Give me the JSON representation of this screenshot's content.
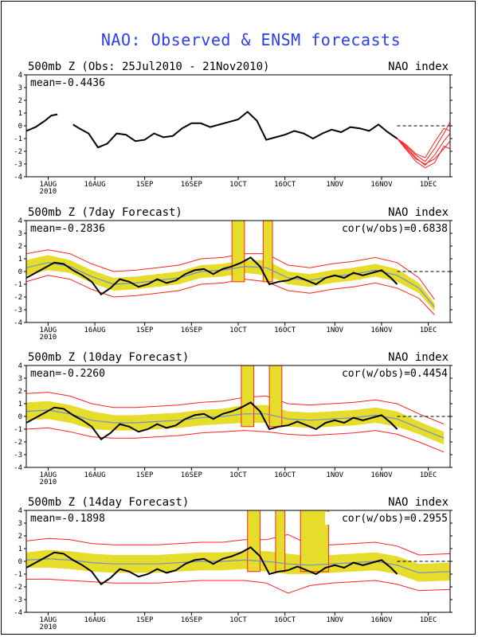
{
  "page": {
    "title": "NAO: Observed & ENSM forecasts"
  },
  "colors": {
    "title": "#2b3ef0",
    "observed": "#000000",
    "ensemble": "#ff2020",
    "spread": "#e6dc2a",
    "ens_mean": "#6f8fd0"
  },
  "x_ticks": [
    "1AUG",
    "16AUG",
    "1SEP",
    "16SEP",
    "1OCT",
    "16OCT",
    "1NOV",
    "16NOV",
    "1DEC"
  ],
  "x_year": "2010",
  "chart_data": [
    {
      "type": "line",
      "title_left": "500mb Z (Obs: 25Jul2010 - 21Nov2010)",
      "title_right": "NAO index",
      "mean_label": "mean=-0.4436",
      "cor_label": "",
      "ylim": [
        -4,
        4
      ],
      "y_ticks": [
        "4",
        "3",
        "2",
        "1",
        "0",
        "-1",
        "-2",
        "-3",
        "-4"
      ],
      "x_range": [
        "2010-07-25",
        "2010-12-08"
      ],
      "observed": {
        "x": [
          "2010-07-25",
          "2010-07-28",
          "2010-07-31",
          "2010-08-02",
          "2010-08-04",
          "2010-08-06",
          "2010-08-09",
          "2010-08-11",
          "2010-08-14",
          "2010-08-17",
          "2010-08-20",
          "2010-08-23",
          "2010-08-26",
          "2010-08-29",
          "2010-09-01",
          "2010-09-04",
          "2010-09-07",
          "2010-09-10",
          "2010-09-13",
          "2010-09-16",
          "2010-09-19",
          "2010-09-22",
          "2010-09-25",
          "2010-09-28",
          "2010-10-01",
          "2010-10-04",
          "2010-10-07",
          "2010-10-10",
          "2010-10-13",
          "2010-10-16",
          "2010-10-19",
          "2010-10-22",
          "2010-10-25",
          "2010-10-28",
          "2010-10-31",
          "2010-11-03",
          "2010-11-06",
          "2010-11-09",
          "2010-11-12",
          "2010-11-15",
          "2010-11-18",
          "2010-11-21"
        ],
        "y": [
          -0.4,
          -0.1,
          0.4,
          0.8,
          0.9,
          null,
          0.1,
          -0.2,
          -0.6,
          -1.7,
          -1.4,
          -0.6,
          -0.7,
          -1.2,
          -1.1,
          -0.6,
          -0.9,
          -0.8,
          -0.2,
          0.2,
          0.2,
          -0.1,
          0.1,
          0.3,
          0.5,
          1.1,
          0.4,
          -1.1,
          -0.9,
          -0.7,
          -0.4,
          -0.6,
          -1.0,
          -0.6,
          -0.3,
          -0.5,
          -0.1,
          -0.2,
          -0.4,
          0.1,
          -0.5,
          -1.0
        ]
      },
      "ensemble_forecast": {
        "x": [
          "2010-11-21",
          "2010-11-24",
          "2010-11-27",
          "2010-11-30",
          "2010-12-03",
          "2010-12-06",
          "2010-12-08"
        ],
        "members": [
          [
            -1.0,
            -1.6,
            -2.3,
            -2.8,
            -1.8,
            -0.6,
            0.3
          ],
          [
            -1.0,
            -1.7,
            -2.5,
            -3.1,
            -2.3,
            -1.2,
            -0.6
          ],
          [
            -1.0,
            -1.8,
            -2.6,
            -3.0,
            -2.6,
            -1.8,
            -1.2
          ],
          [
            -1.0,
            -1.5,
            -2.2,
            -2.5,
            -1.3,
            -0.2,
            -0.4
          ],
          [
            -1.0,
            -1.9,
            -2.8,
            -3.3,
            -2.9,
            -1.6,
            -1.8
          ]
        ]
      }
    },
    {
      "type": "line",
      "title_left": "500mb Z (7day Forecast)",
      "title_right": "NAO index",
      "mean_label": "mean=-0.2836",
      "cor_label": "cor(w/obs)=0.6838",
      "ylim": [
        -4,
        4
      ],
      "y_ticks": [
        "4",
        "3",
        "2",
        "1",
        "0",
        "-1",
        "-2",
        "-3",
        "-4"
      ],
      "x_range": [
        "2010-07-25",
        "2010-12-08"
      ],
      "observed": {
        "x": [
          "2010-07-25",
          "2010-07-28",
          "2010-07-31",
          "2010-08-03",
          "2010-08-06",
          "2010-08-09",
          "2010-08-12",
          "2010-08-15",
          "2010-08-18",
          "2010-08-21",
          "2010-08-24",
          "2010-08-27",
          "2010-08-30",
          "2010-09-02",
          "2010-09-05",
          "2010-09-08",
          "2010-09-11",
          "2010-09-14",
          "2010-09-17",
          "2010-09-20",
          "2010-09-23",
          "2010-09-26",
          "2010-09-29",
          "2010-10-02",
          "2010-10-05",
          "2010-10-08",
          "2010-10-11",
          "2010-10-14",
          "2010-10-17",
          "2010-10-20",
          "2010-10-23",
          "2010-10-26",
          "2010-10-29",
          "2010-11-01",
          "2010-11-04",
          "2010-11-07",
          "2010-11-10",
          "2010-11-13",
          "2010-11-16",
          "2010-11-19",
          "2010-11-21"
        ],
        "y": [
          -0.5,
          -0.1,
          0.3,
          0.7,
          0.6,
          0.1,
          -0.3,
          -0.8,
          -1.8,
          -1.3,
          -0.6,
          -0.8,
          -1.2,
          -1.0,
          -0.6,
          -0.9,
          -0.7,
          -0.2,
          0.1,
          0.2,
          -0.2,
          0.2,
          0.4,
          0.7,
          1.1,
          0.4,
          -1.0,
          -0.8,
          -0.7,
          -0.4,
          -0.7,
          -1.0,
          -0.5,
          -0.3,
          -0.5,
          -0.1,
          -0.3,
          -0.1,
          0.1,
          -0.5,
          -1.0
        ]
      },
      "ens_mean": {
        "x": [
          "2010-07-25",
          "2010-08-01",
          "2010-08-08",
          "2010-08-15",
          "2010-08-22",
          "2010-08-29",
          "2010-09-05",
          "2010-09-12",
          "2010-09-19",
          "2010-09-26",
          "2010-10-03",
          "2010-10-10",
          "2010-10-17",
          "2010-10-24",
          "2010-10-31",
          "2010-11-07",
          "2010-11-14",
          "2010-11-21",
          "2010-11-28",
          "2010-12-03"
        ],
        "y": [
          0.3,
          0.7,
          0.4,
          -0.4,
          -1.0,
          -0.9,
          -0.7,
          -0.5,
          0.0,
          0.1,
          0.4,
          0.3,
          -0.5,
          -0.7,
          -0.4,
          -0.2,
          0.1,
          -0.3,
          -1.3,
          -2.8
        ]
      },
      "spread_halfwidth": [
        0.6,
        0.6,
        0.5,
        0.5,
        0.5,
        0.5,
        0.5,
        0.5,
        0.5,
        0.5,
        0.5,
        0.6,
        0.5,
        0.5,
        0.5,
        0.5,
        0.5,
        0.5,
        0.4,
        0.3
      ],
      "envelope_halfwidth": [
        1.1,
        1.0,
        1.0,
        1.0,
        1.0,
        1.0,
        1.0,
        1.0,
        1.0,
        1.0,
        1.0,
        1.1,
        1.0,
        1.0,
        1.0,
        1.0,
        1.0,
        1.0,
        0.8,
        0.6
      ],
      "off_scale_spikes": [
        {
          "from": "2010-09-29",
          "to": "2010-10-03"
        },
        {
          "from": "2010-10-09",
          "to": "2010-10-12"
        }
      ]
    },
    {
      "type": "line",
      "title_left": "500mb Z (10day Forecast)",
      "title_right": "NAO index",
      "mean_label": "mean=-0.2260",
      "cor_label": "cor(w/obs)=0.4454",
      "ylim": [
        -4,
        4
      ],
      "y_ticks": [
        "4",
        "3",
        "2",
        "1",
        "0",
        "-1",
        "-2",
        "-3",
        "-4"
      ],
      "x_range": [
        "2010-07-25",
        "2010-12-08"
      ],
      "observed": {
        "x": [
          "2010-07-25",
          "2010-07-28",
          "2010-07-31",
          "2010-08-03",
          "2010-08-06",
          "2010-08-09",
          "2010-08-12",
          "2010-08-15",
          "2010-08-18",
          "2010-08-21",
          "2010-08-24",
          "2010-08-27",
          "2010-08-30",
          "2010-09-02",
          "2010-09-05",
          "2010-09-08",
          "2010-09-11",
          "2010-09-14",
          "2010-09-17",
          "2010-09-20",
          "2010-09-23",
          "2010-09-26",
          "2010-09-29",
          "2010-10-02",
          "2010-10-05",
          "2010-10-08",
          "2010-10-11",
          "2010-10-14",
          "2010-10-17",
          "2010-10-20",
          "2010-10-23",
          "2010-10-26",
          "2010-10-29",
          "2010-11-01",
          "2010-11-04",
          "2010-11-07",
          "2010-11-10",
          "2010-11-13",
          "2010-11-16",
          "2010-11-19",
          "2010-11-21"
        ],
        "y": [
          -0.5,
          -0.1,
          0.3,
          0.7,
          0.6,
          0.1,
          -0.3,
          -0.8,
          -1.8,
          -1.3,
          -0.6,
          -0.8,
          -1.2,
          -1.0,
          -0.6,
          -0.9,
          -0.7,
          -0.2,
          0.1,
          0.2,
          -0.2,
          0.2,
          0.4,
          0.7,
          1.1,
          0.4,
          -1.0,
          -0.8,
          -0.7,
          -0.4,
          -0.7,
          -1.0,
          -0.5,
          -0.3,
          -0.5,
          -0.1,
          -0.3,
          -0.1,
          0.1,
          -0.5,
          -1.0
        ]
      },
      "ens_mean": {
        "x": [
          "2010-07-25",
          "2010-08-01",
          "2010-08-08",
          "2010-08-15",
          "2010-08-22",
          "2010-08-29",
          "2010-09-05",
          "2010-09-12",
          "2010-09-19",
          "2010-09-26",
          "2010-10-03",
          "2010-10-10",
          "2010-10-17",
          "2010-10-24",
          "2010-10-31",
          "2010-11-07",
          "2010-11-14",
          "2010-11-21",
          "2010-11-28",
          "2010-12-06"
        ],
        "y": [
          0.4,
          0.5,
          0.2,
          -0.3,
          -0.5,
          -0.5,
          -0.4,
          -0.3,
          -0.1,
          0.0,
          0.2,
          0.2,
          -0.2,
          -0.3,
          -0.2,
          -0.1,
          0.1,
          -0.2,
          -0.9,
          -1.7
        ]
      },
      "spread_halfwidth": [
        0.7,
        0.7,
        0.7,
        0.7,
        0.6,
        0.6,
        0.6,
        0.6,
        0.6,
        0.6,
        0.7,
        0.7,
        0.6,
        0.6,
        0.6,
        0.6,
        0.6,
        0.6,
        0.5,
        0.5
      ],
      "envelope_halfwidth": [
        1.4,
        1.4,
        1.4,
        1.3,
        1.2,
        1.2,
        1.2,
        1.2,
        1.2,
        1.2,
        1.3,
        1.4,
        1.2,
        1.2,
        1.2,
        1.2,
        1.2,
        1.2,
        1.1,
        1.1
      ],
      "off_scale_spikes": [
        {
          "from": "2010-10-02",
          "to": "2010-10-06"
        },
        {
          "from": "2010-10-11",
          "to": "2010-10-15"
        }
      ]
    },
    {
      "type": "line",
      "title_left": "500mb Z (14day Forecast)",
      "title_right": "NAO index",
      "mean_label": "mean=-0.1898",
      "cor_label": "cor(w/obs)=0.2955",
      "ylim": [
        -4,
        4
      ],
      "y_ticks": [
        "4",
        "3",
        "2",
        "1",
        "0",
        "-1",
        "-2",
        "-3",
        "-4"
      ],
      "x_range": [
        "2010-07-25",
        "2010-12-08"
      ],
      "observed": {
        "x": [
          "2010-07-25",
          "2010-07-28",
          "2010-07-31",
          "2010-08-03",
          "2010-08-06",
          "2010-08-09",
          "2010-08-12",
          "2010-08-15",
          "2010-08-18",
          "2010-08-21",
          "2010-08-24",
          "2010-08-27",
          "2010-08-30",
          "2010-09-02",
          "2010-09-05",
          "2010-09-08",
          "2010-09-11",
          "2010-09-14",
          "2010-09-17",
          "2010-09-20",
          "2010-09-23",
          "2010-09-26",
          "2010-09-29",
          "2010-10-02",
          "2010-10-05",
          "2010-10-08",
          "2010-10-11",
          "2010-10-14",
          "2010-10-17",
          "2010-10-20",
          "2010-10-23",
          "2010-10-26",
          "2010-10-29",
          "2010-11-01",
          "2010-11-04",
          "2010-11-07",
          "2010-11-10",
          "2010-11-13",
          "2010-11-16",
          "2010-11-19",
          "2010-11-21"
        ],
        "y": [
          -0.5,
          -0.1,
          0.3,
          0.7,
          0.6,
          0.1,
          -0.3,
          -0.8,
          -1.8,
          -1.3,
          -0.6,
          -0.8,
          -1.2,
          -1.0,
          -0.6,
          -0.9,
          -0.7,
          -0.2,
          0.1,
          0.2,
          -0.2,
          0.2,
          0.4,
          0.7,
          1.1,
          0.4,
          -1.0,
          -0.8,
          -0.7,
          -0.4,
          -0.7,
          -1.0,
          -0.5,
          -0.3,
          -0.5,
          -0.1,
          -0.3,
          -0.1,
          0.1,
          -0.5,
          -1.0
        ]
      },
      "ens_mean": {
        "x": [
          "2010-07-25",
          "2010-08-01",
          "2010-08-08",
          "2010-08-15",
          "2010-08-22",
          "2010-08-29",
          "2010-09-05",
          "2010-09-12",
          "2010-09-19",
          "2010-09-26",
          "2010-10-03",
          "2010-10-10",
          "2010-10-17",
          "2010-10-24",
          "2010-10-31",
          "2010-11-07",
          "2010-11-14",
          "2010-11-21",
          "2010-11-28",
          "2010-12-08"
        ],
        "y": [
          0.1,
          0.2,
          0.1,
          -0.1,
          -0.2,
          -0.2,
          -0.2,
          -0.1,
          0.0,
          0.0,
          0.1,
          0.0,
          -0.2,
          -0.3,
          -0.2,
          -0.1,
          0.0,
          -0.3,
          -0.9,
          -0.8
        ]
      },
      "spread_halfwidth": [
        0.6,
        0.7,
        0.7,
        0.7,
        0.7,
        0.7,
        0.7,
        0.7,
        0.7,
        0.7,
        0.7,
        0.8,
        0.8,
        0.7,
        0.7,
        0.7,
        0.7,
        0.7,
        0.7,
        0.7
      ],
      "envelope_halfwidth": [
        1.5,
        1.6,
        1.6,
        1.5,
        1.5,
        1.5,
        1.5,
        1.5,
        1.5,
        1.5,
        1.6,
        1.7,
        2.3,
        1.6,
        1.5,
        1.5,
        1.5,
        1.5,
        1.4,
        1.4
      ],
      "off_scale_spikes": [
        {
          "from": "2010-10-04",
          "to": "2010-10-08"
        },
        {
          "from": "2010-10-13",
          "to": "2010-10-16"
        },
        {
          "from": "2010-10-21",
          "to": "2010-10-30"
        }
      ]
    }
  ]
}
